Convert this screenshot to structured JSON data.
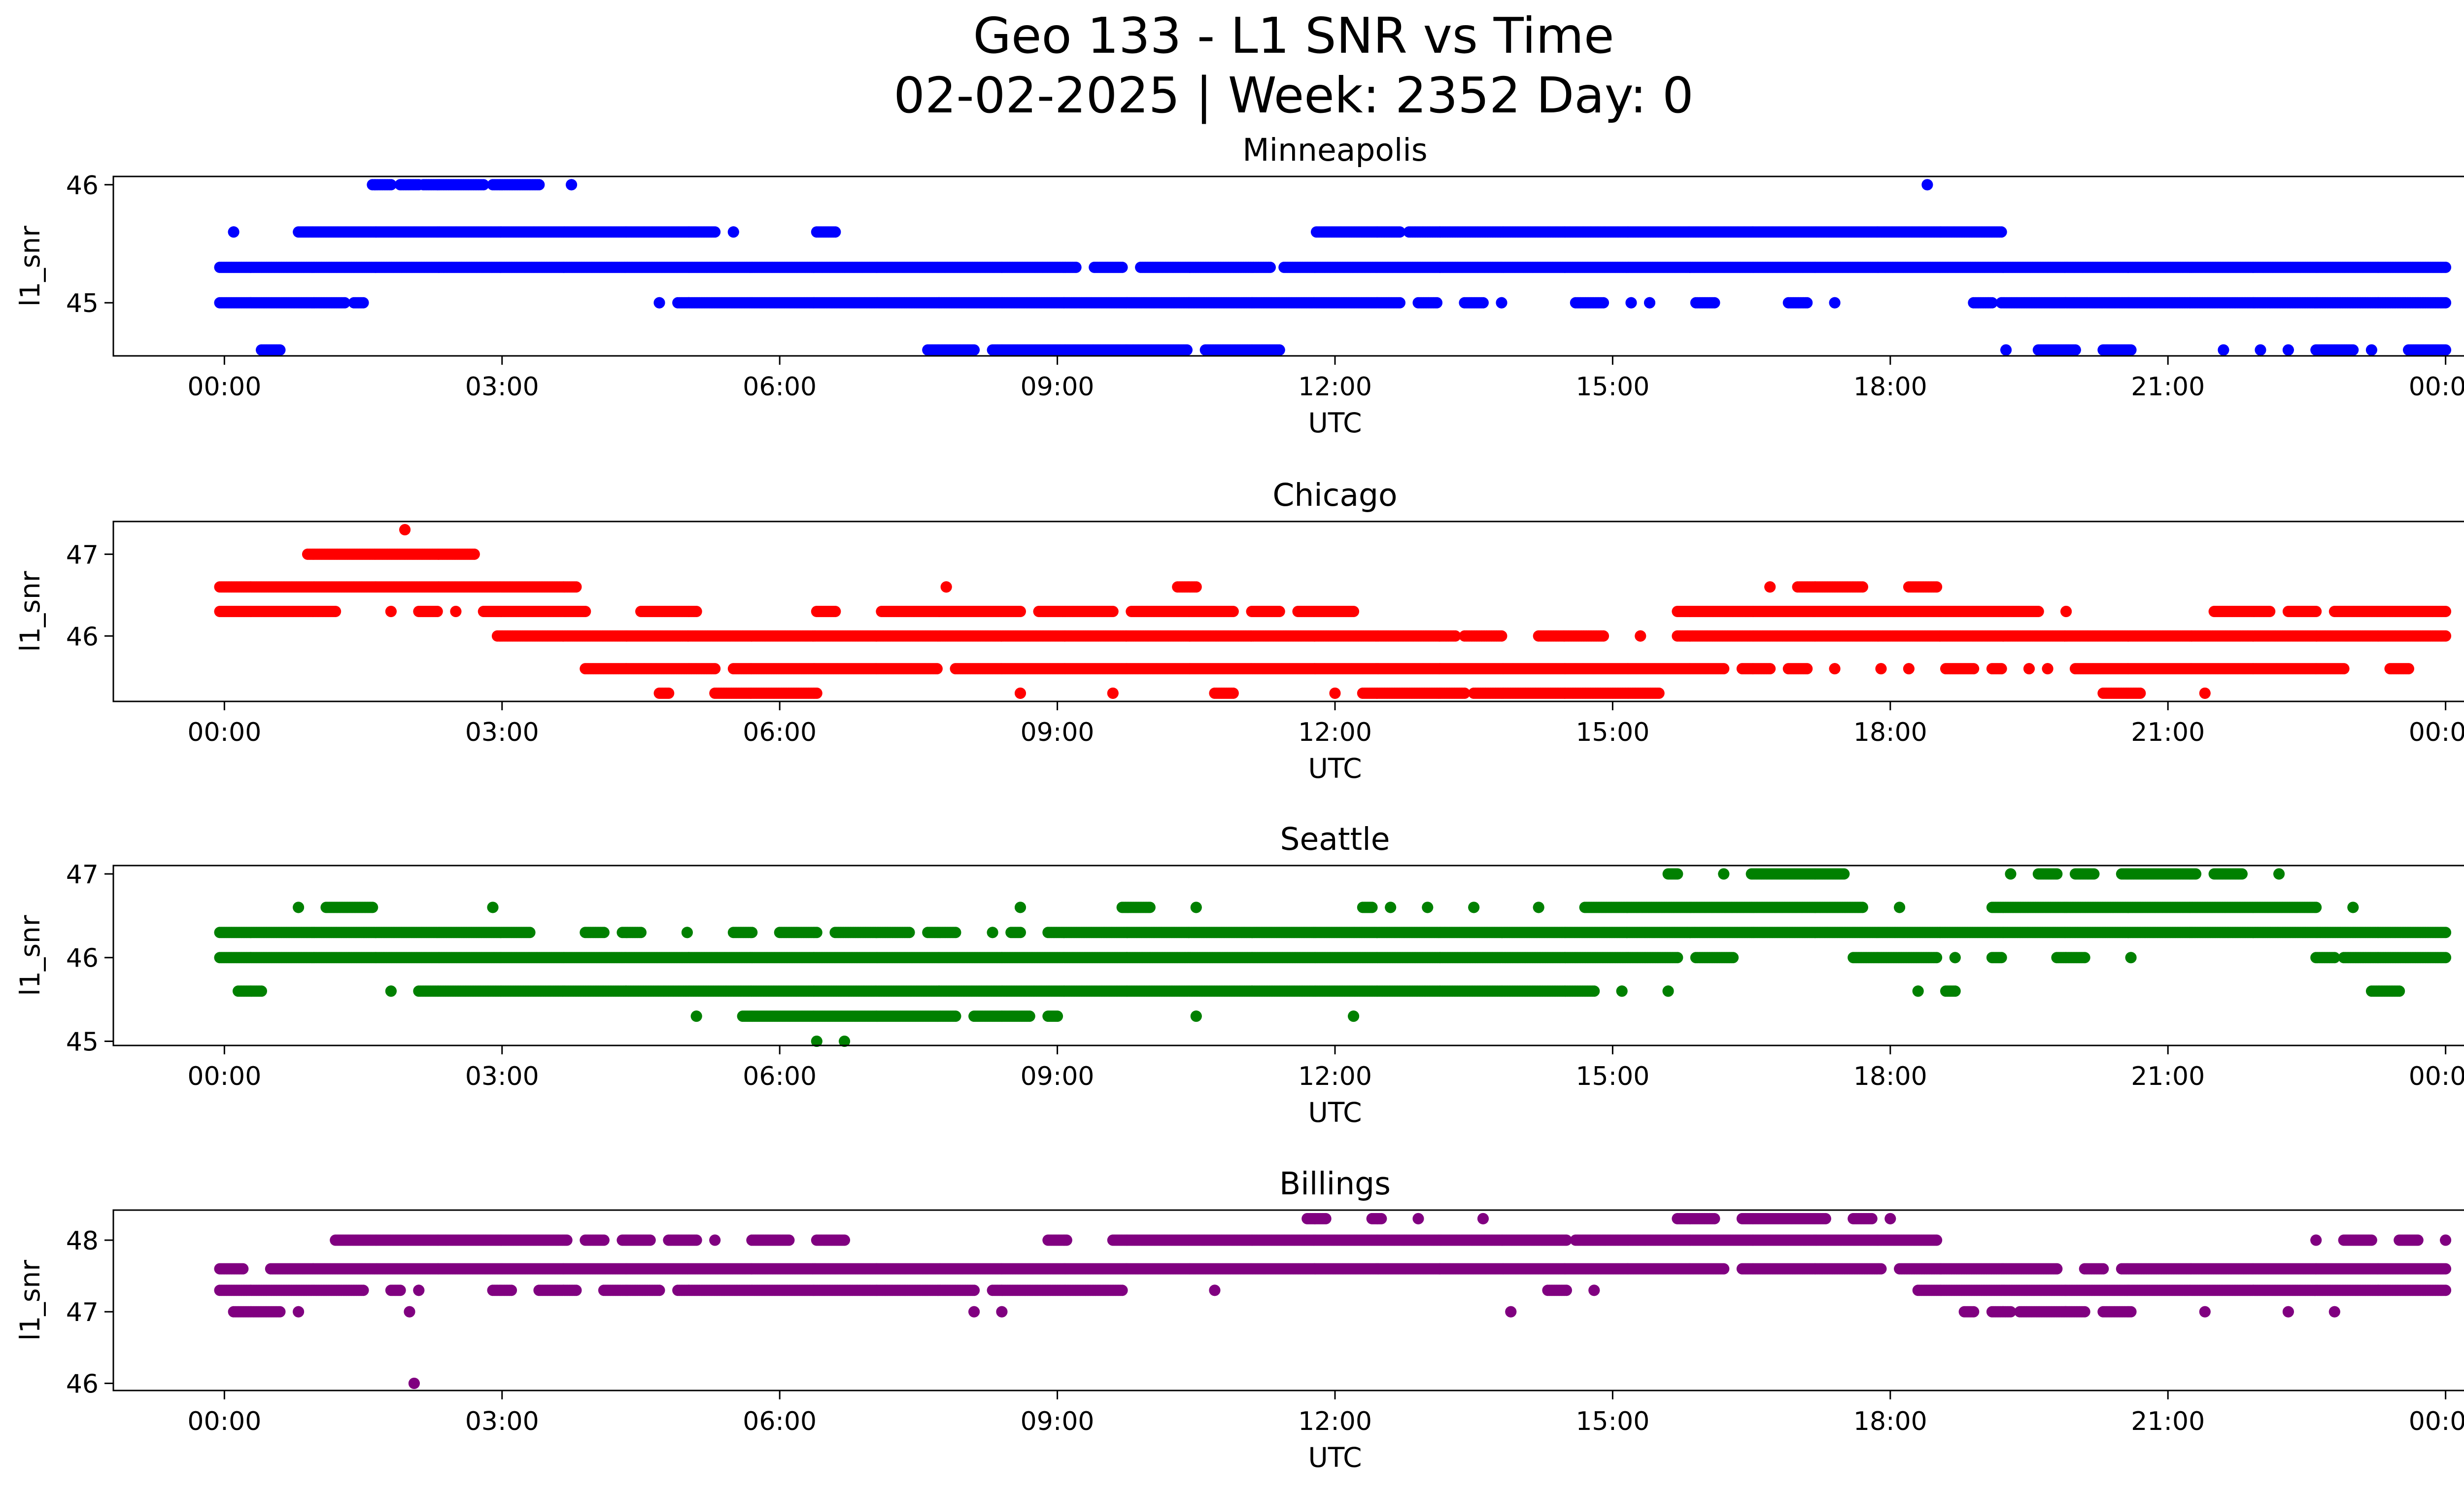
{
  "figure": {
    "title_line1": "Geo 133 - L1 SNR vs Time",
    "title_line2": "02-02-2025 | Week: 2352 Day: 0"
  },
  "chart_data": [
    {
      "type": "scatter",
      "title": "Minneapolis",
      "xlabel": "UTC",
      "ylabel": "l1_snr",
      "color": "#0000ff",
      "x_unit": "hours UTC",
      "xlim": [
        -1.2,
        25.2
      ],
      "xticks": [
        0,
        3,
        6,
        9,
        12,
        15,
        18,
        21,
        24
      ],
      "xtick_labels": [
        "00:00",
        "03:00",
        "06:00",
        "09:00",
        "12:00",
        "15:00",
        "18:00",
        "21:00",
        "00:00"
      ],
      "ylim": [
        44.55,
        46.07
      ],
      "yticks": [
        45,
        46
      ],
      "ytick_labels": [
        "45",
        "46"
      ],
      "series": [
        {
          "level": 46.0,
          "segments": [
            [
              1.6,
              1.8
            ],
            [
              1.9,
              2.1
            ],
            [
              2.15,
              2.8
            ],
            [
              2.9,
              3.4
            ],
            [
              3.75,
              3.75
            ],
            [
              18.4,
              18.4
            ]
          ]
        },
        {
          "level": 45.6,
          "segments": [
            [
              0.1,
              0.1
            ],
            [
              0.8,
              5.3
            ],
            [
              5.5,
              5.5
            ],
            [
              6.4,
              6.6
            ],
            [
              11.8,
              12.7
            ],
            [
              12.8,
              19.2
            ]
          ]
        },
        {
          "level": 45.3,
          "segments": [
            [
              -0.05,
              9.2
            ],
            [
              9.4,
              9.7
            ],
            [
              9.9,
              11.3
            ],
            [
              11.45,
              24.0
            ]
          ]
        },
        {
          "level": 45.0,
          "segments": [
            [
              -0.05,
              1.3
            ],
            [
              1.4,
              1.5
            ],
            [
              4.7,
              4.7
            ],
            [
              4.9,
              12.7
            ],
            [
              12.9,
              13.1
            ],
            [
              13.4,
              13.6
            ],
            [
              13.8,
              13.8
            ],
            [
              14.6,
              14.9
            ],
            [
              15.2,
              15.2
            ],
            [
              15.4,
              15.4
            ],
            [
              15.9,
              16.1
            ],
            [
              16.9,
              17.1
            ],
            [
              17.4,
              17.4
            ],
            [
              18.9,
              19.1
            ],
            [
              19.2,
              24.0
            ]
          ]
        },
        {
          "level": 44.6,
          "segments": [
            [
              0.4,
              0.6
            ],
            [
              7.6,
              8.1
            ],
            [
              8.3,
              10.4
            ],
            [
              10.6,
              11.4
            ],
            [
              19.25,
              19.25
            ],
            [
              19.6,
              20.0
            ],
            [
              20.3,
              20.6
            ],
            [
              21.6,
              21.6
            ],
            [
              22.0,
              22.0
            ],
            [
              22.3,
              22.3
            ],
            [
              22.6,
              23.0
            ],
            [
              23.2,
              23.2
            ],
            [
              23.6,
              24.0
            ]
          ]
        }
      ]
    },
    {
      "type": "scatter",
      "title": "Chicago",
      "xlabel": "UTC",
      "ylabel": "l1_snr",
      "color": "#ff0000",
      "x_unit": "hours UTC",
      "xlim": [
        -1.2,
        25.2
      ],
      "xticks": [
        0,
        3,
        6,
        9,
        12,
        15,
        18,
        21,
        24
      ],
      "xtick_labels": [
        "00:00",
        "03:00",
        "06:00",
        "09:00",
        "12:00",
        "15:00",
        "18:00",
        "21:00",
        "00:00"
      ],
      "ylim": [
        45.2,
        47.4
      ],
      "yticks": [
        46,
        47
      ],
      "ytick_labels": [
        "46",
        "47"
      ],
      "series": [
        {
          "level": 47.3,
          "segments": [
            [
              1.95,
              1.95
            ]
          ]
        },
        {
          "level": 47.0,
          "segments": [
            [
              0.9,
              2.7
            ]
          ]
        },
        {
          "level": 46.6,
          "segments": [
            [
              -0.05,
              3.8
            ],
            [
              7.8,
              7.8
            ],
            [
              10.3,
              10.5
            ],
            [
              16.7,
              16.7
            ],
            [
              17.0,
              17.7
            ],
            [
              18.2,
              18.5
            ]
          ]
        },
        {
          "level": 46.3,
          "segments": [
            [
              -0.05,
              1.2
            ],
            [
              1.8,
              1.8
            ],
            [
              2.1,
              2.3
            ],
            [
              2.5,
              2.5
            ],
            [
              2.8,
              3.9
            ],
            [
              4.5,
              5.1
            ],
            [
              6.4,
              6.6
            ],
            [
              7.1,
              8.6
            ],
            [
              8.8,
              9.6
            ],
            [
              9.8,
              10.9
            ],
            [
              11.1,
              11.4
            ],
            [
              11.6,
              12.2
            ],
            [
              15.7,
              19.6
            ],
            [
              19.9,
              19.9
            ],
            [
              21.5,
              22.1
            ],
            [
              22.3,
              22.6
            ],
            [
              22.8,
              24.0
            ]
          ]
        },
        {
          "level": 46.0,
          "segments": [
            [
              2.95,
              13.3
            ],
            [
              13.4,
              13.8
            ],
            [
              14.2,
              14.9
            ],
            [
              15.3,
              15.3
            ],
            [
              15.7,
              24.0
            ]
          ]
        },
        {
          "level": 45.6,
          "segments": [
            [
              3.9,
              5.3
            ],
            [
              5.5,
              7.7
            ],
            [
              7.9,
              16.2
            ],
            [
              16.4,
              16.7
            ],
            [
              16.9,
              17.1
            ],
            [
              17.4,
              17.4
            ],
            [
              17.9,
              17.9
            ],
            [
              18.2,
              18.2
            ],
            [
              18.6,
              18.9
            ],
            [
              19.1,
              19.2
            ],
            [
              19.5,
              19.5
            ],
            [
              19.7,
              19.7
            ],
            [
              20.0,
              22.9
            ],
            [
              23.4,
              23.6
            ]
          ]
        },
        {
          "level": 45.3,
          "segments": [
            [
              4.7,
              4.8
            ],
            [
              5.3,
              6.4
            ],
            [
              8.6,
              8.6
            ],
            [
              9.6,
              9.6
            ],
            [
              10.7,
              10.9
            ],
            [
              12.0,
              12.0
            ],
            [
              12.3,
              13.4
            ],
            [
              13.5,
              15.5
            ],
            [
              20.3,
              20.7
            ],
            [
              21.4,
              21.4
            ]
          ]
        }
      ]
    },
    {
      "type": "scatter",
      "title": "Seattle",
      "xlabel": "UTC",
      "ylabel": "l1_snr",
      "color": "#008000",
      "x_unit": "hours UTC",
      "xlim": [
        -1.2,
        25.2
      ],
      "xticks": [
        0,
        3,
        6,
        9,
        12,
        15,
        18,
        21,
        24
      ],
      "xtick_labels": [
        "00:00",
        "03:00",
        "06:00",
        "09:00",
        "12:00",
        "15:00",
        "18:00",
        "21:00",
        "00:00"
      ],
      "ylim": [
        44.95,
        47.1
      ],
      "yticks": [
        45,
        46,
        47
      ],
      "ytick_labels": [
        "45",
        "46",
        "47"
      ],
      "series": [
        {
          "level": 47.0,
          "segments": [
            [
              15.6,
              15.7
            ],
            [
              16.2,
              16.2
            ],
            [
              16.5,
              17.5
            ],
            [
              19.3,
              19.3
            ],
            [
              19.6,
              19.8
            ],
            [
              20.0,
              20.2
            ],
            [
              20.5,
              21.3
            ],
            [
              21.5,
              21.8
            ],
            [
              22.2,
              22.2
            ]
          ]
        },
        {
          "level": 46.6,
          "segments": [
            [
              0.8,
              0.8
            ],
            [
              1.1,
              1.6
            ],
            [
              2.9,
              2.9
            ],
            [
              8.6,
              8.6
            ],
            [
              9.7,
              10.0
            ],
            [
              10.5,
              10.5
            ],
            [
              12.3,
              12.4
            ],
            [
              12.6,
              12.6
            ],
            [
              13.0,
              13.0
            ],
            [
              13.5,
              13.5
            ],
            [
              14.2,
              14.2
            ],
            [
              14.7,
              17.7
            ],
            [
              18.1,
              18.1
            ],
            [
              19.1,
              22.6
            ],
            [
              23.0,
              23.0
            ]
          ]
        },
        {
          "level": 46.3,
          "segments": [
            [
              -0.05,
              3.3
            ],
            [
              3.9,
              4.1
            ],
            [
              4.3,
              4.5
            ],
            [
              5.0,
              5.0
            ],
            [
              5.5,
              5.7
            ],
            [
              6.0,
              6.4
            ],
            [
              6.6,
              7.4
            ],
            [
              7.6,
              7.9
            ],
            [
              8.3,
              8.3
            ],
            [
              8.5,
              8.6
            ],
            [
              8.9,
              24.0
            ]
          ]
        },
        {
          "level": 46.0,
          "segments": [
            [
              -0.05,
              15.7
            ],
            [
              15.9,
              16.3
            ],
            [
              17.6,
              18.5
            ],
            [
              18.7,
              18.7
            ],
            [
              19.1,
              19.2
            ],
            [
              19.8,
              20.1
            ],
            [
              20.6,
              20.6
            ],
            [
              22.6,
              22.8
            ],
            [
              22.9,
              24.0
            ]
          ]
        },
        {
          "level": 45.6,
          "segments": [
            [
              0.15,
              0.4
            ],
            [
              1.8,
              1.8
            ],
            [
              2.1,
              14.8
            ],
            [
              15.1,
              15.1
            ],
            [
              15.6,
              15.6
            ],
            [
              18.3,
              18.3
            ],
            [
              18.6,
              18.7
            ],
            [
              23.2,
              23.5
            ]
          ]
        },
        {
          "level": 45.3,
          "segments": [
            [
              5.1,
              5.1
            ],
            [
              5.6,
              7.9
            ],
            [
              8.1,
              8.7
            ],
            [
              8.9,
              9.0
            ],
            [
              10.5,
              10.5
            ],
            [
              12.2,
              12.2
            ]
          ]
        },
        {
          "level": 45.0,
          "segments": [
            [
              6.4,
              6.4
            ],
            [
              6.7,
              6.7
            ]
          ]
        }
      ]
    },
    {
      "type": "scatter",
      "title": "Billings",
      "xlabel": "UTC",
      "ylabel": "l1_snr",
      "color": "#800080",
      "x_unit": "hours UTC",
      "xlim": [
        -1.2,
        25.2
      ],
      "xticks": [
        0,
        3,
        6,
        9,
        12,
        15,
        18,
        21,
        24
      ],
      "xtick_labels": [
        "00:00",
        "03:00",
        "06:00",
        "09:00",
        "12:00",
        "15:00",
        "18:00",
        "21:00",
        "00:00"
      ],
      "ylim": [
        45.9,
        48.42
      ],
      "yticks": [
        46,
        47,
        48
      ],
      "ytick_labels": [
        "46",
        "47",
        "48"
      ],
      "series": [
        {
          "level": 48.3,
          "segments": [
            [
              11.7,
              11.9
            ],
            [
              12.4,
              12.5
            ],
            [
              12.9,
              12.9
            ],
            [
              13.6,
              13.6
            ],
            [
              15.7,
              16.1
            ],
            [
              16.4,
              17.3
            ],
            [
              17.6,
              17.8
            ],
            [
              18.0,
              18.0
            ]
          ]
        },
        {
          "level": 48.0,
          "segments": [
            [
              1.2,
              3.7
            ],
            [
              3.9,
              4.1
            ],
            [
              4.3,
              4.6
            ],
            [
              4.8,
              5.1
            ],
            [
              5.3,
              5.3
            ],
            [
              5.7,
              6.1
            ],
            [
              6.4,
              6.7
            ],
            [
              8.9,
              9.1
            ],
            [
              9.6,
              14.5
            ],
            [
              14.6,
              18.5
            ],
            [
              22.6,
              22.6
            ],
            [
              22.9,
              23.2
            ],
            [
              23.5,
              23.7
            ],
            [
              24.0,
              24.0
            ]
          ]
        },
        {
          "level": 47.6,
          "segments": [
            [
              -0.05,
              0.2
            ],
            [
              0.5,
              16.2
            ],
            [
              16.4,
              17.9
            ],
            [
              18.1,
              19.8
            ],
            [
              20.1,
              20.3
            ],
            [
              20.5,
              24.0
            ]
          ]
        },
        {
          "level": 47.3,
          "segments": [
            [
              -0.05,
              1.5
            ],
            [
              1.8,
              1.9
            ],
            [
              2.1,
              2.1
            ],
            [
              2.9,
              3.1
            ],
            [
              3.4,
              3.8
            ],
            [
              4.1,
              4.7
            ],
            [
              4.9,
              8.1
            ],
            [
              8.3,
              9.7
            ],
            [
              10.7,
              10.7
            ],
            [
              14.3,
              14.5
            ],
            [
              14.8,
              14.8
            ],
            [
              18.3,
              24.0
            ]
          ]
        },
        {
          "level": 47.0,
          "segments": [
            [
              0.1,
              0.6
            ],
            [
              0.8,
              0.8
            ],
            [
              2.0,
              2.0
            ],
            [
              8.1,
              8.1
            ],
            [
              8.4,
              8.4
            ],
            [
              13.9,
              13.9
            ],
            [
              18.8,
              18.9
            ],
            [
              19.1,
              19.3
            ],
            [
              19.4,
              20.1
            ],
            [
              20.3,
              20.6
            ],
            [
              21.4,
              21.4
            ],
            [
              22.3,
              22.3
            ],
            [
              22.8,
              22.8
            ]
          ]
        },
        {
          "level": 46.0,
          "segments": [
            [
              2.05,
              2.05
            ]
          ]
        }
      ]
    }
  ]
}
